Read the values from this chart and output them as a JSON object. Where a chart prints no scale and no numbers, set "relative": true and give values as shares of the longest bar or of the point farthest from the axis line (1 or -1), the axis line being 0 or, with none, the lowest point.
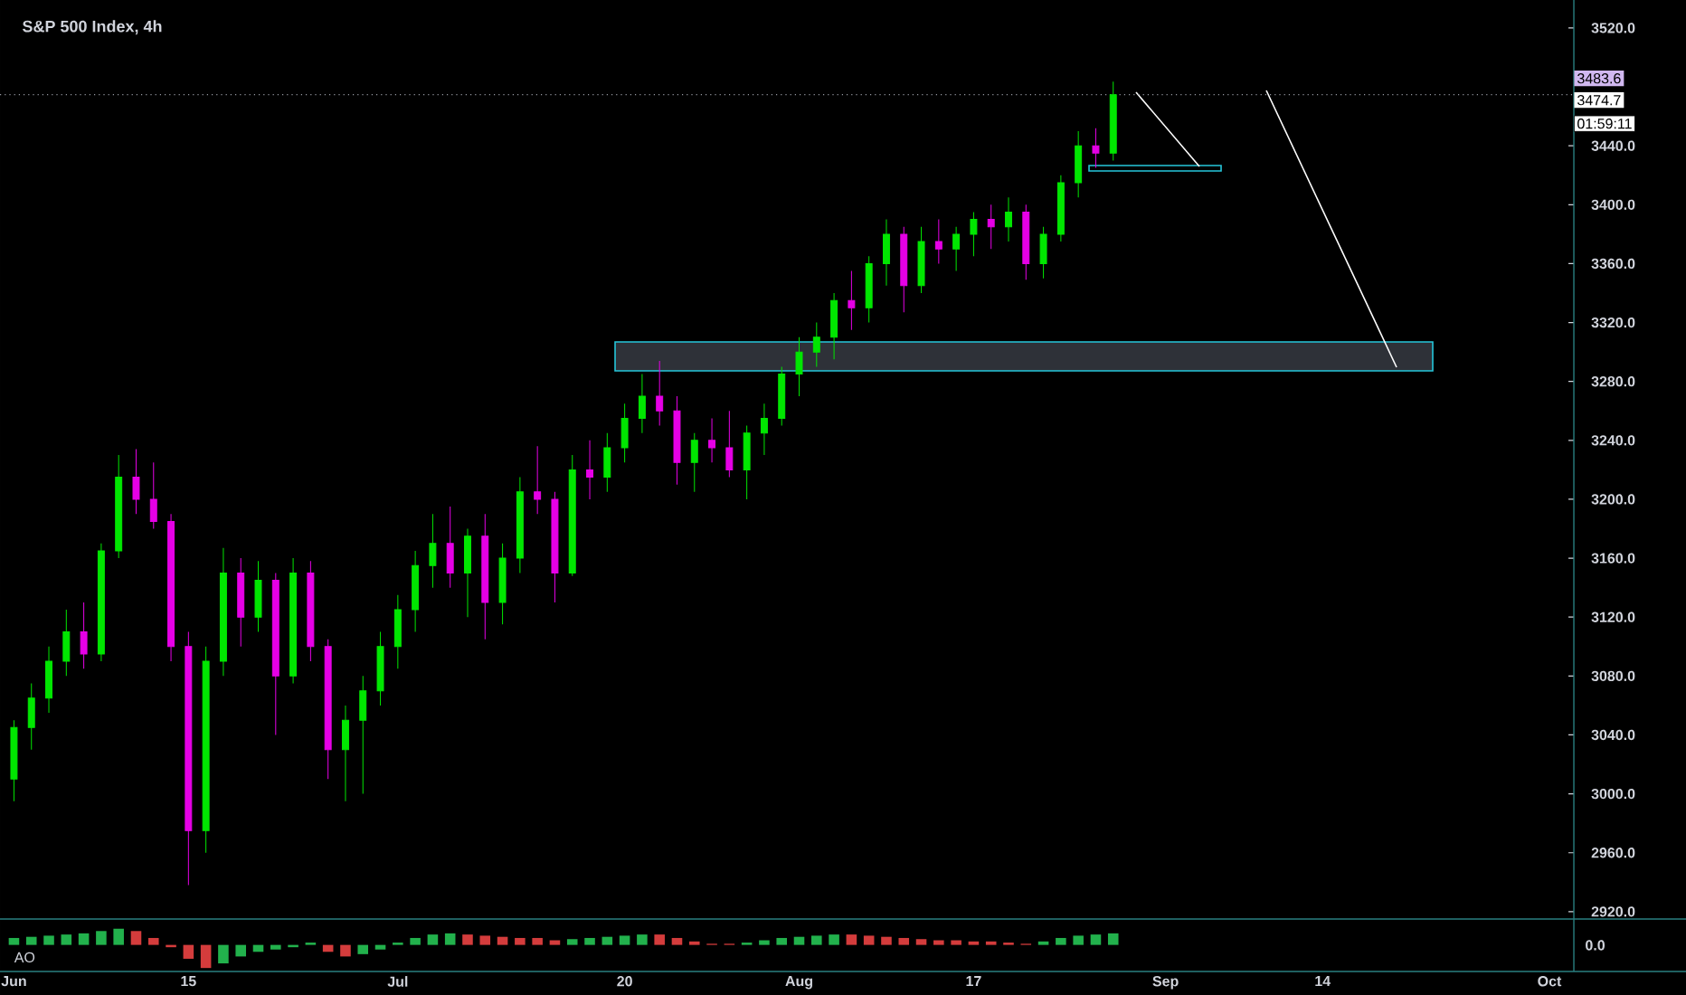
{
  "chart_data": [
    {
      "type": "candlestick",
      "title": "S&P 500 Index, 4h",
      "categories": [
        "Jun",
        null,
        null,
        null,
        null,
        null,
        null,
        null,
        null,
        null,
        "15",
        null,
        null,
        null,
        null,
        null,
        null,
        null,
        null,
        null,
        null,
        null,
        "Jul",
        null,
        null,
        null,
        null,
        null,
        null,
        null,
        null,
        null,
        null,
        null,
        null,
        "20",
        null,
        null,
        null,
        null,
        null,
        null,
        null,
        null,
        null,
        "Aug",
        null,
        null,
        null,
        null,
        null,
        null,
        null,
        null,
        null,
        "17",
        null,
        null,
        null,
        null,
        null,
        null,
        null,
        null,
        null,
        null,
        "Sep",
        null,
        null,
        null,
        null,
        null,
        null,
        null,
        null,
        "14",
        null,
        null,
        null,
        null,
        null,
        null,
        null,
        null,
        null,
        null,
        null,
        null,
        "Oct",
        null
      ],
      "ylim": [
        2915,
        3539
      ],
      "yticks": [
        {
          "value": 2920,
          "label": "2920.0"
        },
        {
          "value": 2960,
          "label": "2960.0"
        },
        {
          "value": 3000,
          "label": "3000.0"
        },
        {
          "value": 3040,
          "label": "3040.0"
        },
        {
          "value": 3080,
          "label": "3080.0"
        },
        {
          "value": 3120,
          "label": "3120.0"
        },
        {
          "value": 3160,
          "label": "3160.0"
        },
        {
          "value": 3200,
          "label": "3200.0"
        },
        {
          "value": 3240,
          "label": "3240.0"
        },
        {
          "value": 3280,
          "label": "3280.0"
        },
        {
          "value": 3320,
          "label": "3320.0"
        },
        {
          "value": 3360,
          "label": "3360.0"
        },
        {
          "value": 3400,
          "label": "3400.0"
        },
        {
          "value": 3440,
          "label": "3440.0"
        },
        {
          "value": 3520,
          "label": "3520.0"
        }
      ],
      "ohlc": [
        [
          3010,
          3050,
          2995,
          3045
        ],
        [
          3045,
          3075,
          3030,
          3065
        ],
        [
          3065,
          3100,
          3055,
          3090
        ],
        [
          3090,
          3125,
          3080,
          3110
        ],
        [
          3110,
          3130,
          3085,
          3095
        ],
        [
          3095,
          3170,
          3090,
          3165
        ],
        [
          3165,
          3230,
          3160,
          3215
        ],
        [
          3215,
          3234,
          3190,
          3200
        ],
        [
          3200,
          3225,
          3180,
          3185
        ],
        [
          3185,
          3190,
          3090,
          3100
        ],
        [
          3100,
          3110,
          2938,
          2975
        ],
        [
          2975,
          3100,
          2960,
          3090
        ],
        [
          3090,
          3167,
          3080,
          3150
        ],
        [
          3150,
          3160,
          3100,
          3120
        ],
        [
          3120,
          3158,
          3110,
          3145
        ],
        [
          3145,
          3150,
          3040,
          3080
        ],
        [
          3080,
          3160,
          3075,
          3150
        ],
        [
          3150,
          3158,
          3090,
          3100
        ],
        [
          3100,
          3105,
          3010,
          3030
        ],
        [
          3030,
          3060,
          2995,
          3050
        ],
        [
          3050,
          3080,
          3000,
          3070
        ],
        [
          3070,
          3110,
          3060,
          3100
        ],
        [
          3100,
          3135,
          3085,
          3125
        ],
        [
          3125,
          3165,
          3110,
          3155
        ],
        [
          3155,
          3190,
          3140,
          3170
        ],
        [
          3170,
          3195,
          3140,
          3150
        ],
        [
          3150,
          3180,
          3120,
          3175
        ],
        [
          3175,
          3190,
          3105,
          3130
        ],
        [
          3130,
          3170,
          3115,
          3160
        ],
        [
          3160,
          3215,
          3150,
          3205
        ],
        [
          3205,
          3236,
          3190,
          3200
        ],
        [
          3200,
          3205,
          3130,
          3150
        ],
        [
          3150,
          3230,
          3148,
          3220
        ],
        [
          3220,
          3240,
          3200,
          3215
        ],
        [
          3215,
          3245,
          3205,
          3235
        ],
        [
          3235,
          3265,
          3225,
          3255
        ],
        [
          3255,
          3285,
          3245,
          3270
        ],
        [
          3270,
          3294,
          3250,
          3260
        ],
        [
          3260,
          3270,
          3210,
          3225
        ],
        [
          3225,
          3245,
          3205,
          3240
        ],
        [
          3240,
          3255,
          3225,
          3235
        ],
        [
          3235,
          3260,
          3215,
          3220
        ],
        [
          3220,
          3250,
          3200,
          3245
        ],
        [
          3245,
          3265,
          3230,
          3255
        ],
        [
          3255,
          3290,
          3250,
          3285
        ],
        [
          3285,
          3310,
          3270,
          3300
        ],
        [
          3300,
          3320,
          3290,
          3310
        ],
        [
          3310,
          3340,
          3295,
          3335
        ],
        [
          3335,
          3355,
          3315,
          3330
        ],
        [
          3330,
          3365,
          3320,
          3360
        ],
        [
          3360,
          3390,
          3345,
          3380
        ],
        [
          3380,
          3385,
          3327,
          3345
        ],
        [
          3345,
          3385,
          3340,
          3375
        ],
        [
          3375,
          3390,
          3360,
          3370
        ],
        [
          3370,
          3385,
          3355,
          3380
        ],
        [
          3380,
          3395,
          3365,
          3390
        ],
        [
          3390,
          3400,
          3370,
          3385
        ],
        [
          3385,
          3405,
          3375,
          3395
        ],
        [
          3395,
          3400,
          3349,
          3360
        ],
        [
          3360,
          3385,
          3350,
          3380
        ],
        [
          3380,
          3420,
          3375,
          3415
        ],
        [
          3415,
          3450,
          3405,
          3440
        ],
        [
          3440,
          3452,
          3425,
          3435
        ],
        [
          3435,
          3483.6,
          3430,
          3474.7
        ],
        null,
        null,
        null,
        null,
        null,
        null,
        null,
        null,
        null,
        null,
        null,
        null,
        null,
        null,
        null,
        null,
        null,
        null,
        null,
        null,
        null,
        null,
        null,
        null,
        null,
        null
      ],
      "colors": [
        "#00e600",
        "#00e600",
        "#00e600",
        "#00e600",
        "#e600e6",
        "#00e600",
        "#00e600",
        "#e600e6",
        "#e600e6",
        "#e600e6",
        "#e600e6",
        "#00e600",
        "#00e600",
        "#e600e6",
        "#00e600",
        "#e600e6",
        "#00e600",
        "#e600e6",
        "#e600e6",
        "#00e600",
        "#00e600",
        "#00e600",
        "#00e600",
        "#00e600",
        "#00e600",
        "#e600e6",
        "#00e600",
        "#e600e6",
        "#00e600",
        "#00e600",
        "#e600e6",
        "#e600e6",
        "#00e600",
        "#e600e6",
        "#00e600",
        "#00e600",
        "#00e600",
        "#e600e6",
        "#e600e6",
        "#00e600",
        "#e600e6",
        "#e600e6",
        "#00e600",
        "#00e600",
        "#00e600",
        "#00e600",
        "#00e600",
        "#00e600",
        "#e600e6",
        "#00e600",
        "#00e600",
        "#e600e6",
        "#00e600",
        "#e600e6",
        "#00e600",
        "#00e600",
        "#e600e6",
        "#00e600",
        "#e600e6",
        "#00e600",
        "#00e600",
        "#00e600",
        "#e600e6",
        "#00e600",
        null,
        null,
        null,
        null,
        null,
        null,
        null,
        null,
        null,
        null,
        null,
        null,
        null,
        null,
        null,
        null,
        null,
        null,
        null,
        null,
        null,
        null,
        null,
        null,
        null,
        null
      ],
      "ref_lines": [
        {
          "axis": "y",
          "value": 3474.7,
          "label": "3474.7",
          "color": "#9598a1",
          "line_style": "dotted"
        }
      ],
      "annotations": [
        "3483.6",
        "01:59:11"
      ]
    },
    {
      "type": "bar",
      "title": "AO",
      "relative": true,
      "categories": [
        null,
        null,
        null,
        null,
        null,
        null,
        null,
        null,
        null,
        null,
        null,
        null,
        null,
        null,
        null,
        null,
        null,
        null,
        null,
        null,
        null,
        null,
        null,
        null,
        null,
        null,
        null,
        null,
        null,
        null,
        null,
        null,
        null,
        null,
        null,
        null,
        null,
        null,
        null,
        null,
        null,
        null,
        null,
        null,
        null,
        null,
        null,
        null,
        null,
        null,
        null,
        null,
        null,
        null,
        null,
        null,
        null,
        null,
        null,
        null,
        null,
        null,
        null,
        null,
        null,
        null,
        null,
        null,
        null,
        null,
        null,
        null,
        null,
        null,
        null,
        null,
        null,
        null,
        null,
        null,
        null,
        null,
        null,
        null,
        null,
        null,
        null,
        null,
        null,
        null
      ],
      "values": [
        0.3,
        0.35,
        0.4,
        0.45,
        0.5,
        0.6,
        0.7,
        0.6,
        0.3,
        -0.1,
        -0.6,
        -1,
        -0.8,
        -0.5,
        -0.3,
        -0.2,
        -0.1,
        0.1,
        -0.3,
        -0.5,
        -0.4,
        -0.2,
        0.1,
        0.3,
        0.45,
        0.5,
        0.45,
        0.4,
        0.35,
        0.3,
        0.3,
        0.2,
        0.25,
        0.3,
        0.35,
        0.4,
        0.45,
        0.45,
        0.3,
        0.15,
        0.05,
        0.05,
        0.1,
        0.2,
        0.3,
        0.35,
        0.4,
        0.45,
        0.45,
        0.4,
        0.35,
        0.3,
        0.25,
        0.2,
        0.2,
        0.15,
        0.15,
        0.1,
        0.05,
        0.15,
        0.3,
        0.4,
        0.45,
        0.5,
        null,
        null,
        null,
        null,
        null,
        null,
        null,
        null,
        null,
        null,
        null,
        null,
        null,
        null,
        null,
        null,
        null,
        null,
        null,
        null,
        null,
        null,
        null,
        null,
        null,
        null
      ],
      "colors": [
        "#22b14c",
        "#22b14c",
        "#22b14c",
        "#22b14c",
        "#22b14c",
        "#22b14c",
        "#22b14c",
        "#d43c3c",
        "#d43c3c",
        "#d43c3c",
        "#d43c3c",
        "#d43c3c",
        "#22b14c",
        "#22b14c",
        "#22b14c",
        "#22b14c",
        "#22b14c",
        "#22b14c",
        "#d43c3c",
        "#d43c3c",
        "#22b14c",
        "#22b14c",
        "#22b14c",
        "#22b14c",
        "#22b14c",
        "#22b14c",
        "#d43c3c",
        "#d43c3c",
        "#d43c3c",
        "#d43c3c",
        "#d43c3c",
        "#d43c3c",
        "#22b14c",
        "#22b14c",
        "#22b14c",
        "#22b14c",
        "#22b14c",
        "#d43c3c",
        "#d43c3c",
        "#d43c3c",
        "#d43c3c",
        "#d43c3c",
        "#22b14c",
        "#22b14c",
        "#22b14c",
        "#22b14c",
        "#22b14c",
        "#22b14c",
        "#d43c3c",
        "#d43c3c",
        "#d43c3c",
        "#d43c3c",
        "#d43c3c",
        "#d43c3c",
        "#d43c3c",
        "#d43c3c",
        "#d43c3c",
        "#d43c3c",
        "#d43c3c",
        "#22b14c",
        "#22b14c",
        "#22b14c",
        "#22b14c",
        "#22b14c",
        null,
        null,
        null,
        null,
        null,
        null,
        null,
        null,
        null,
        null,
        null,
        null,
        null,
        null,
        null,
        null,
        null,
        null,
        null,
        null,
        null,
        null,
        null,
        null,
        null,
        null
      ],
      "annotations": [
        "0.0"
      ]
    }
  ]
}
